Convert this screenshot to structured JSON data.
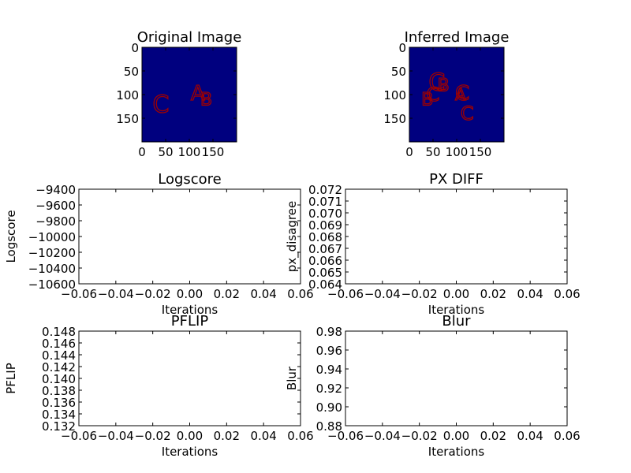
{
  "chart_data": [
    {
      "type": "heatmap",
      "title": "Original Image",
      "xticks": [
        "0",
        "50",
        "100",
        "150"
      ],
      "yticks": [
        "0",
        "50",
        "100",
        "150"
      ],
      "xlim": [
        0,
        200
      ],
      "ylim": [
        200,
        0
      ],
      "background_color": "#00007f",
      "glyph_color": "#a00000",
      "letters": [
        {
          "text": "A",
          "x": 118,
          "y": 98,
          "size": 26
        },
        {
          "text": "B",
          "x": 136,
          "y": 112,
          "size": 22
        },
        {
          "text": "C",
          "x": 40,
          "y": 122,
          "size": 30
        }
      ]
    },
    {
      "type": "heatmap",
      "title": "Inferred Image",
      "xticks": [
        "0",
        "50",
        "100",
        "150"
      ],
      "yticks": [
        "0",
        "50",
        "100",
        "150"
      ],
      "xlim": [
        0,
        200
      ],
      "ylim": [
        200,
        0
      ],
      "background_color": "#00007f",
      "glyph_color": "#a00000",
      "letters": [
        {
          "text": "C",
          "x": 58,
          "y": 75,
          "size": 30
        },
        {
          "text": "B",
          "x": 72,
          "y": 82,
          "size": 22
        },
        {
          "text": "C",
          "x": 50,
          "y": 100,
          "size": 24
        },
        {
          "text": "B",
          "x": 38,
          "y": 112,
          "size": 22
        },
        {
          "text": "A",
          "x": 108,
          "y": 100,
          "size": 20
        },
        {
          "text": "C",
          "x": 112,
          "y": 98,
          "size": 26
        },
        {
          "text": "C",
          "x": 122,
          "y": 140,
          "size": 24
        }
      ]
    },
    {
      "type": "line",
      "title": "Logscore",
      "xlabel": "Iterations",
      "ylabel": "Logscore",
      "xlim": [
        -0.06,
        0.06
      ],
      "ylim": [
        -10600,
        -9400
      ],
      "xticks": [
        "−0.06",
        "−0.04",
        "−0.02",
        "0.00",
        "0.02",
        "0.04",
        "0.06"
      ],
      "yticks": [
        "−9400",
        "−9600",
        "−9800",
        "−10000",
        "−10200",
        "−10400",
        "−10600"
      ],
      "series": []
    },
    {
      "type": "line",
      "title": "PX DIFF",
      "xlabel": "Iterations",
      "ylabel": "px_disagree",
      "xlim": [
        -0.06,
        0.06
      ],
      "ylim": [
        0.064,
        0.072
      ],
      "xticks": [
        "−0.06",
        "−0.04",
        "−0.02",
        "0.00",
        "0.02",
        "0.04",
        "0.06"
      ],
      "yticks": [
        "0.072",
        "0.071",
        "0.070",
        "0.069",
        "0.068",
        "0.067",
        "0.066",
        "0.065",
        "0.064"
      ],
      "series": []
    },
    {
      "type": "line",
      "title": "PFLIP",
      "xlabel": "Iterations",
      "ylabel": "PFLIP",
      "xlim": [
        -0.06,
        0.06
      ],
      "ylim": [
        0.132,
        0.148
      ],
      "xticks": [
        "−0.06",
        "−0.04",
        "−0.02",
        "0.00",
        "0.02",
        "0.04",
        "0.06"
      ],
      "yticks": [
        "0.148",
        "0.146",
        "0.144",
        "0.142",
        "0.140",
        "0.138",
        "0.136",
        "0.134",
        "0.132"
      ],
      "series": []
    },
    {
      "type": "line",
      "title": "Blur",
      "xlabel": "Iterations",
      "ylabel": "Blur",
      "xlim": [
        -0.06,
        0.06
      ],
      "ylim": [
        0.88,
        0.98
      ],
      "xticks": [
        "−0.06",
        "−0.04",
        "−0.02",
        "0.00",
        "0.02",
        "0.04",
        "0.06"
      ],
      "yticks": [
        "0.98",
        "0.96",
        "0.94",
        "0.92",
        "0.90",
        "0.88"
      ],
      "series": []
    }
  ]
}
